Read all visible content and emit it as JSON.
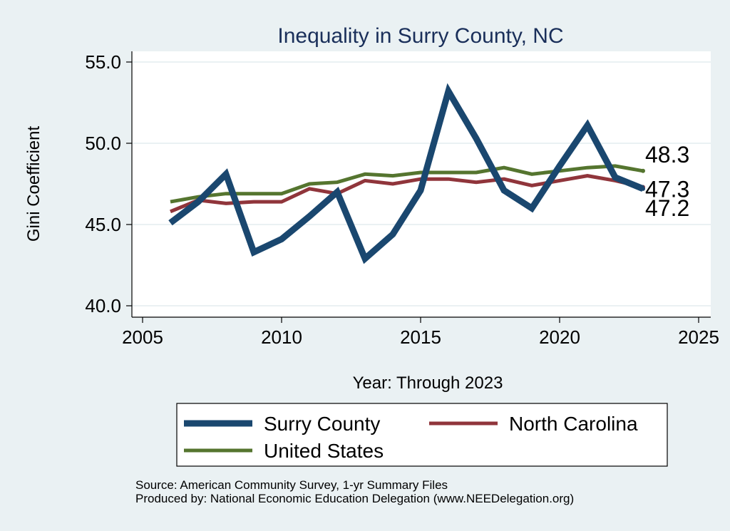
{
  "chart_data": {
    "type": "line",
    "title": "Inequality in Surry County, NC",
    "xlabel": "Year: Through 2023",
    "ylabel": "Gini Coefficient",
    "xlim": [
      2005,
      2025
    ],
    "ylim": [
      40,
      55
    ],
    "x_ticks": [
      2005,
      2010,
      2015,
      2020,
      2025
    ],
    "y_ticks": [
      40,
      45,
      50,
      55
    ],
    "y_tick_labels": [
      "40.0",
      "45.0",
      "50.0",
      "55.0"
    ],
    "x": [
      2006,
      2007,
      2008,
      2009,
      2010,
      2011,
      2012,
      2013,
      2014,
      2015,
      2016,
      2017,
      2018,
      2019,
      2020,
      2021,
      2022,
      2023
    ],
    "series": [
      {
        "name": "Surry County",
        "color": "#1a476f",
        "values": [
          45.1,
          46.4,
          48.1,
          43.3,
          44.1,
          45.5,
          47.0,
          42.9,
          44.4,
          47.1,
          53.2,
          50.3,
          47.1,
          46.0,
          48.6,
          51.1,
          47.9,
          47.2
        ],
        "end_label": "47.2"
      },
      {
        "name": "North Carolina",
        "color": "#90353b",
        "values": [
          45.8,
          46.5,
          46.3,
          46.4,
          46.4,
          47.2,
          46.9,
          47.7,
          47.5,
          47.8,
          47.8,
          47.6,
          47.8,
          47.4,
          47.7,
          48.0,
          47.7,
          47.3
        ],
        "end_label": "47.3"
      },
      {
        "name": "United States",
        "color": "#55752f",
        "values": [
          46.4,
          46.7,
          46.9,
          46.9,
          46.9,
          47.5,
          47.6,
          48.1,
          48.0,
          48.2,
          48.2,
          48.2,
          48.5,
          48.1,
          48.3,
          48.5,
          48.6,
          48.3
        ],
        "end_label": "48.3"
      }
    ],
    "legend_position": "bottom",
    "grid": true
  },
  "source_line1": "Source: American Community Survey, 1-yr Summary Files",
  "source_line2": "Produced by: National Economic Education Delegation (www.NEEDelegation.org)"
}
